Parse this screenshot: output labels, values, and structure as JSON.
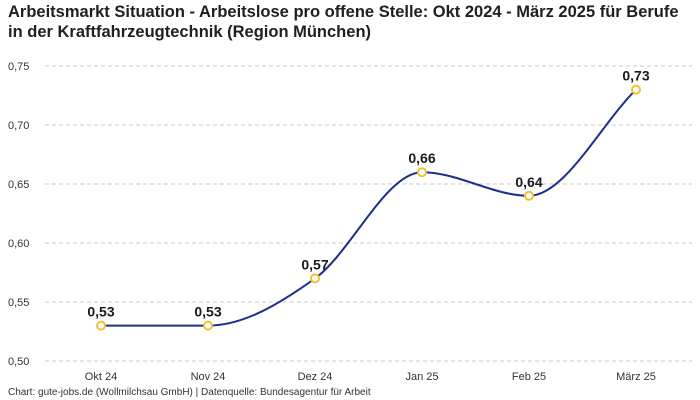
{
  "chart_data": {
    "type": "line",
    "title": "Arbeitsmarkt Situation - Arbeitslose pro offene Stelle: Okt 2024 - März 2025 für Berufe in der Kraftfahrzeugtechnik (Region München)",
    "categories": [
      "Okt 24",
      "Nov 24",
      "Dez 24",
      "Jan 25",
      "Feb 25",
      "März 25"
    ],
    "values": [
      0.53,
      0.53,
      0.57,
      0.66,
      0.64,
      0.73
    ],
    "data_labels": [
      "0,53",
      "0,53",
      "0,57",
      "0,66",
      "0,64",
      "0,73"
    ],
    "yticks": [
      0.5,
      0.55,
      0.6,
      0.65,
      0.7,
      0.75
    ],
    "ytick_labels": [
      "0,50",
      "0,55",
      "0,60",
      "0,65",
      "0,70",
      "0,75"
    ],
    "ylim": [
      0.5,
      0.75
    ],
    "xlabel": "",
    "ylabel": "",
    "grid": true,
    "line_color": "#1f2f8c",
    "marker_color": "#f2c12e"
  },
  "footer": "Chart: gute-jobs.de (Wollmilchsau GmbH) | Datenquelle: Bundesagentur für Arbeit"
}
